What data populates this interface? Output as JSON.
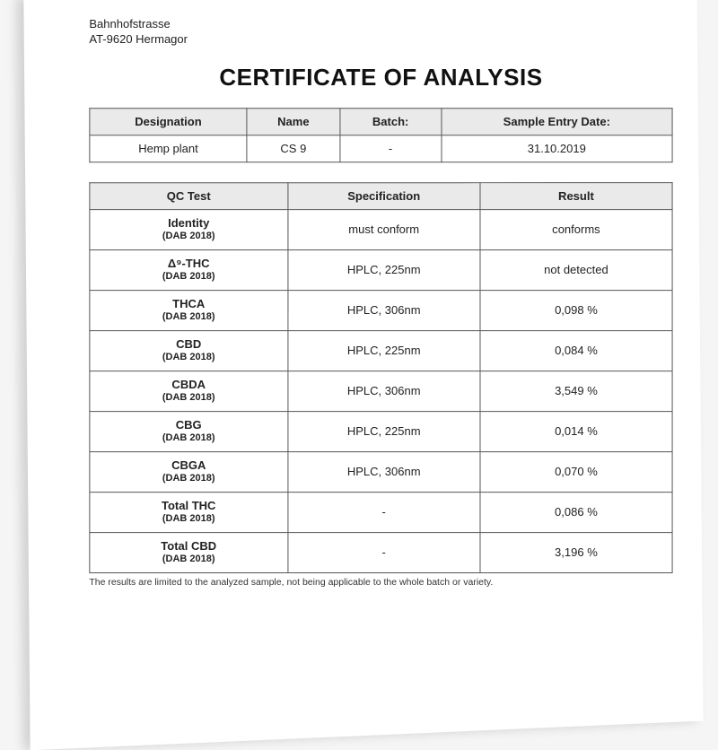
{
  "address": {
    "line1": "Bahnhofstrasse",
    "line2": "AT-9620 Hermagor"
  },
  "title": "CERTIFICATE OF ANALYSIS",
  "meta_table": {
    "headers": [
      "Designation",
      "Name",
      "Batch:",
      "Sample Entry Date:"
    ],
    "row": [
      "Hemp plant",
      "CS 9",
      "-",
      "31.10.2019"
    ]
  },
  "qc_table": {
    "headers": [
      "QC Test",
      "Specification",
      "Result"
    ],
    "method_ref": "(DAB 2018)",
    "rows": [
      {
        "test": "Identity",
        "spec": "must conform",
        "result": "conforms"
      },
      {
        "test": "Δ⁹-THC",
        "spec": "HPLC, 225nm",
        "result": "not detected"
      },
      {
        "test": "THCA",
        "spec": "HPLC, 306nm",
        "result": "0,098 %"
      },
      {
        "test": "CBD",
        "spec": "HPLC, 225nm",
        "result": "0,084 %"
      },
      {
        "test": "CBDA",
        "spec": "HPLC, 306nm",
        "result": "3,549 %"
      },
      {
        "test": "CBG",
        "spec": "HPLC, 225nm",
        "result": "0,014 %"
      },
      {
        "test": "CBGA",
        "spec": "HPLC, 306nm",
        "result": "0,070 %"
      },
      {
        "test": "Total THC",
        "spec": "-",
        "result": "0,086 %"
      },
      {
        "test": "Total CBD",
        "spec": "-",
        "result": "3,196 %"
      }
    ]
  },
  "footnote": "The results are limited to the analyzed sample, not being applicable to the whole batch or variety.",
  "colors": {
    "paper_bg": "#ffffff",
    "page_bg": "#f5f5f5",
    "header_bg": "#eaeaea",
    "border": "#555555",
    "text": "#222222"
  }
}
